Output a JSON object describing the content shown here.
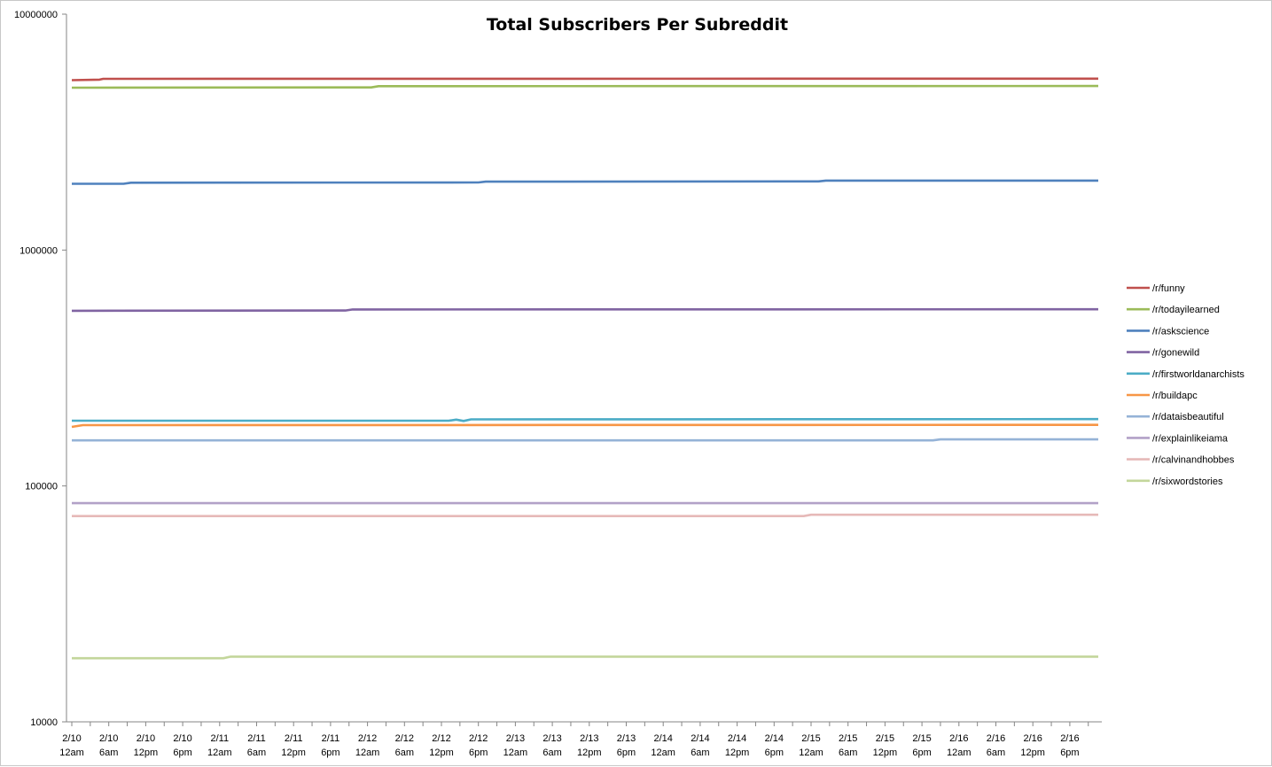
{
  "chart_data": {
    "type": "line",
    "title": "Total Subscribers Per Subreddit",
    "xlabel": "",
    "ylabel": "",
    "y_scale": "log",
    "ylim": [
      10000,
      10000000
    ],
    "y_ticks": [
      "10000",
      "100000",
      "1000000",
      "10000000"
    ],
    "grid": false,
    "legend_position": "right",
    "x_tick_labels": [
      {
        "date": "2/10",
        "time": "12am"
      },
      {
        "date": "2/10",
        "time": "6am"
      },
      {
        "date": "2/10",
        "time": "12pm"
      },
      {
        "date": "2/10",
        "time": "6pm"
      },
      {
        "date": "2/11",
        "time": "12am"
      },
      {
        "date": "2/11",
        "time": "6am"
      },
      {
        "date": "2/11",
        "time": "12pm"
      },
      {
        "date": "2/11",
        "time": "6pm"
      },
      {
        "date": "2/12",
        "time": "12am"
      },
      {
        "date": "2/12",
        "time": "6am"
      },
      {
        "date": "2/12",
        "time": "12pm"
      },
      {
        "date": "2/12",
        "time": "6pm"
      },
      {
        "date": "2/13",
        "time": "12am"
      },
      {
        "date": "2/13",
        "time": "6am"
      },
      {
        "date": "2/13",
        "time": "12pm"
      },
      {
        "date": "2/13",
        "time": "6pm"
      },
      {
        "date": "2/14",
        "time": "12am"
      },
      {
        "date": "2/14",
        "time": "6am"
      },
      {
        "date": "2/14",
        "time": "12pm"
      },
      {
        "date": "2/14",
        "time": "6pm"
      },
      {
        "date": "2/15",
        "time": "12am"
      },
      {
        "date": "2/15",
        "time": "6am"
      },
      {
        "date": "2/15",
        "time": "12pm"
      },
      {
        "date": "2/15",
        "time": "6pm"
      },
      {
        "date": "2/16",
        "time": "12am"
      },
      {
        "date": "2/16",
        "time": "6am"
      },
      {
        "date": "2/16",
        "time": "12pm"
      },
      {
        "date": "2/16",
        "time": "6pm"
      }
    ],
    "x_range_ticks": [
      0,
      28
    ],
    "series": [
      {
        "name": "/r/funny",
        "color": "#C0504D",
        "points": [
          [
            0,
            5250000
          ],
          [
            0.75,
            5280000
          ],
          [
            0.85,
            5320000
          ],
          [
            28,
            5330000
          ]
        ]
      },
      {
        "name": "/r/todayilearned",
        "color": "#9BBB59",
        "points": [
          [
            0,
            4880000
          ],
          [
            8.1,
            4890000
          ],
          [
            8.3,
            4950000
          ],
          [
            28,
            4960000
          ]
        ]
      },
      {
        "name": "/r/askscience",
        "color": "#4F81BD",
        "points": [
          [
            0,
            1910000
          ],
          [
            1.4,
            1910000
          ],
          [
            1.6,
            1930000
          ],
          [
            11,
            1935000
          ],
          [
            11.2,
            1950000
          ],
          [
            20.2,
            1955000
          ],
          [
            20.4,
            1970000
          ],
          [
            28,
            1970000
          ]
        ]
      },
      {
        "name": "/r/gonewild",
        "color": "#8064A2",
        "points": [
          [
            0,
            553000
          ],
          [
            7.4,
            554000
          ],
          [
            7.6,
            560000
          ],
          [
            28,
            561000
          ]
        ]
      },
      {
        "name": "/r/firstworldanarchists",
        "color": "#4BACC6",
        "points": [
          [
            0,
            189000
          ],
          [
            10.2,
            189000
          ],
          [
            10.4,
            191000
          ],
          [
            10.6,
            188500
          ],
          [
            10.8,
            191500
          ],
          [
            28,
            192000
          ]
        ]
      },
      {
        "name": "/r/buildapc",
        "color": "#F79646",
        "points": [
          [
            0,
            178000
          ],
          [
            0.3,
            181000
          ],
          [
            28,
            181500
          ]
        ]
      },
      {
        "name": "/r/dataisbeautiful",
        "color": "#95B3D7",
        "points": [
          [
            0,
            156000
          ],
          [
            23.3,
            156000
          ],
          [
            23.5,
            157500
          ],
          [
            28,
            157500
          ]
        ]
      },
      {
        "name": "/r/explainlikeiama",
        "color": "#B2A1C7",
        "points": [
          [
            0,
            84500
          ],
          [
            28,
            84500
          ]
        ]
      },
      {
        "name": "/r/calvinandhobbes",
        "color": "#E6B9B8",
        "points": [
          [
            0,
            74500
          ],
          [
            19.8,
            74500
          ],
          [
            20.0,
            75500
          ],
          [
            28,
            75500
          ]
        ]
      },
      {
        "name": "/r/sixwordstories",
        "color": "#C3D69B",
        "points": [
          [
            0,
            18600
          ],
          [
            4.1,
            18600
          ],
          [
            4.3,
            18900
          ],
          [
            28,
            18900
          ]
        ]
      }
    ]
  }
}
